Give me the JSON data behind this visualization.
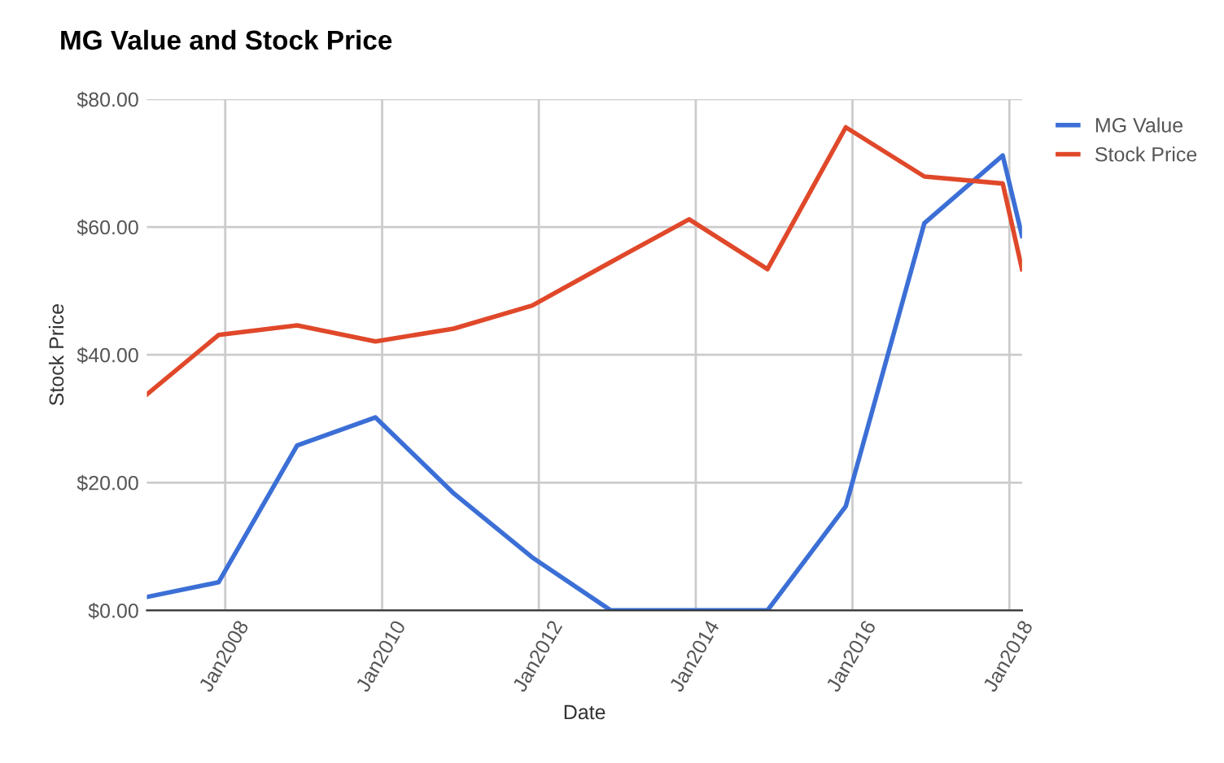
{
  "chart_data": {
    "type": "line",
    "title": "MG Value and Stock Price",
    "xlabel": "Date",
    "ylabel": "Stock Price",
    "x": [
      "2007-01",
      "2007-12",
      "2008-12",
      "2009-12",
      "2010-12",
      "2011-12",
      "2012-12",
      "2013-12",
      "2014-12",
      "2015-12",
      "2016-12",
      "2017-12",
      "2018-03"
    ],
    "series": [
      {
        "name": "MG Value",
        "color": "#3c6fd6",
        "values": [
          2.1,
          4.4,
          25.8,
          30.2,
          18.3,
          8.3,
          0,
          0,
          0,
          16.3,
          60.6,
          71.2,
          58.6
        ]
      },
      {
        "name": "Stock Price",
        "color": "#e0482a",
        "values": [
          33.8,
          43.1,
          44.6,
          42.1,
          44.1,
          47.7,
          54.5,
          61.2,
          53.4,
          75.6,
          67.9,
          66.8,
          53.4
        ]
      }
    ],
    "xlim": [
      "2007-01",
      "2018-03"
    ],
    "xticks": [
      {
        "value": "2008-01",
        "label": "Jan2008"
      },
      {
        "value": "2010-01",
        "label": "Jan2010"
      },
      {
        "value": "2012-01",
        "label": "Jan2012"
      },
      {
        "value": "2014-01",
        "label": "Jan2014"
      },
      {
        "value": "2016-01",
        "label": "Jan2016"
      },
      {
        "value": "2018-01",
        "label": "Jan2018"
      }
    ],
    "ylim": [
      0,
      80
    ],
    "yticks": [
      {
        "value": 0,
        "label": "$0.00"
      },
      {
        "value": 20,
        "label": "$20.00"
      },
      {
        "value": 40,
        "label": "$40.00"
      },
      {
        "value": 60,
        "label": "$60.00"
      },
      {
        "value": 80,
        "label": "$80.00"
      }
    ],
    "grid": true,
    "legend": "right"
  }
}
